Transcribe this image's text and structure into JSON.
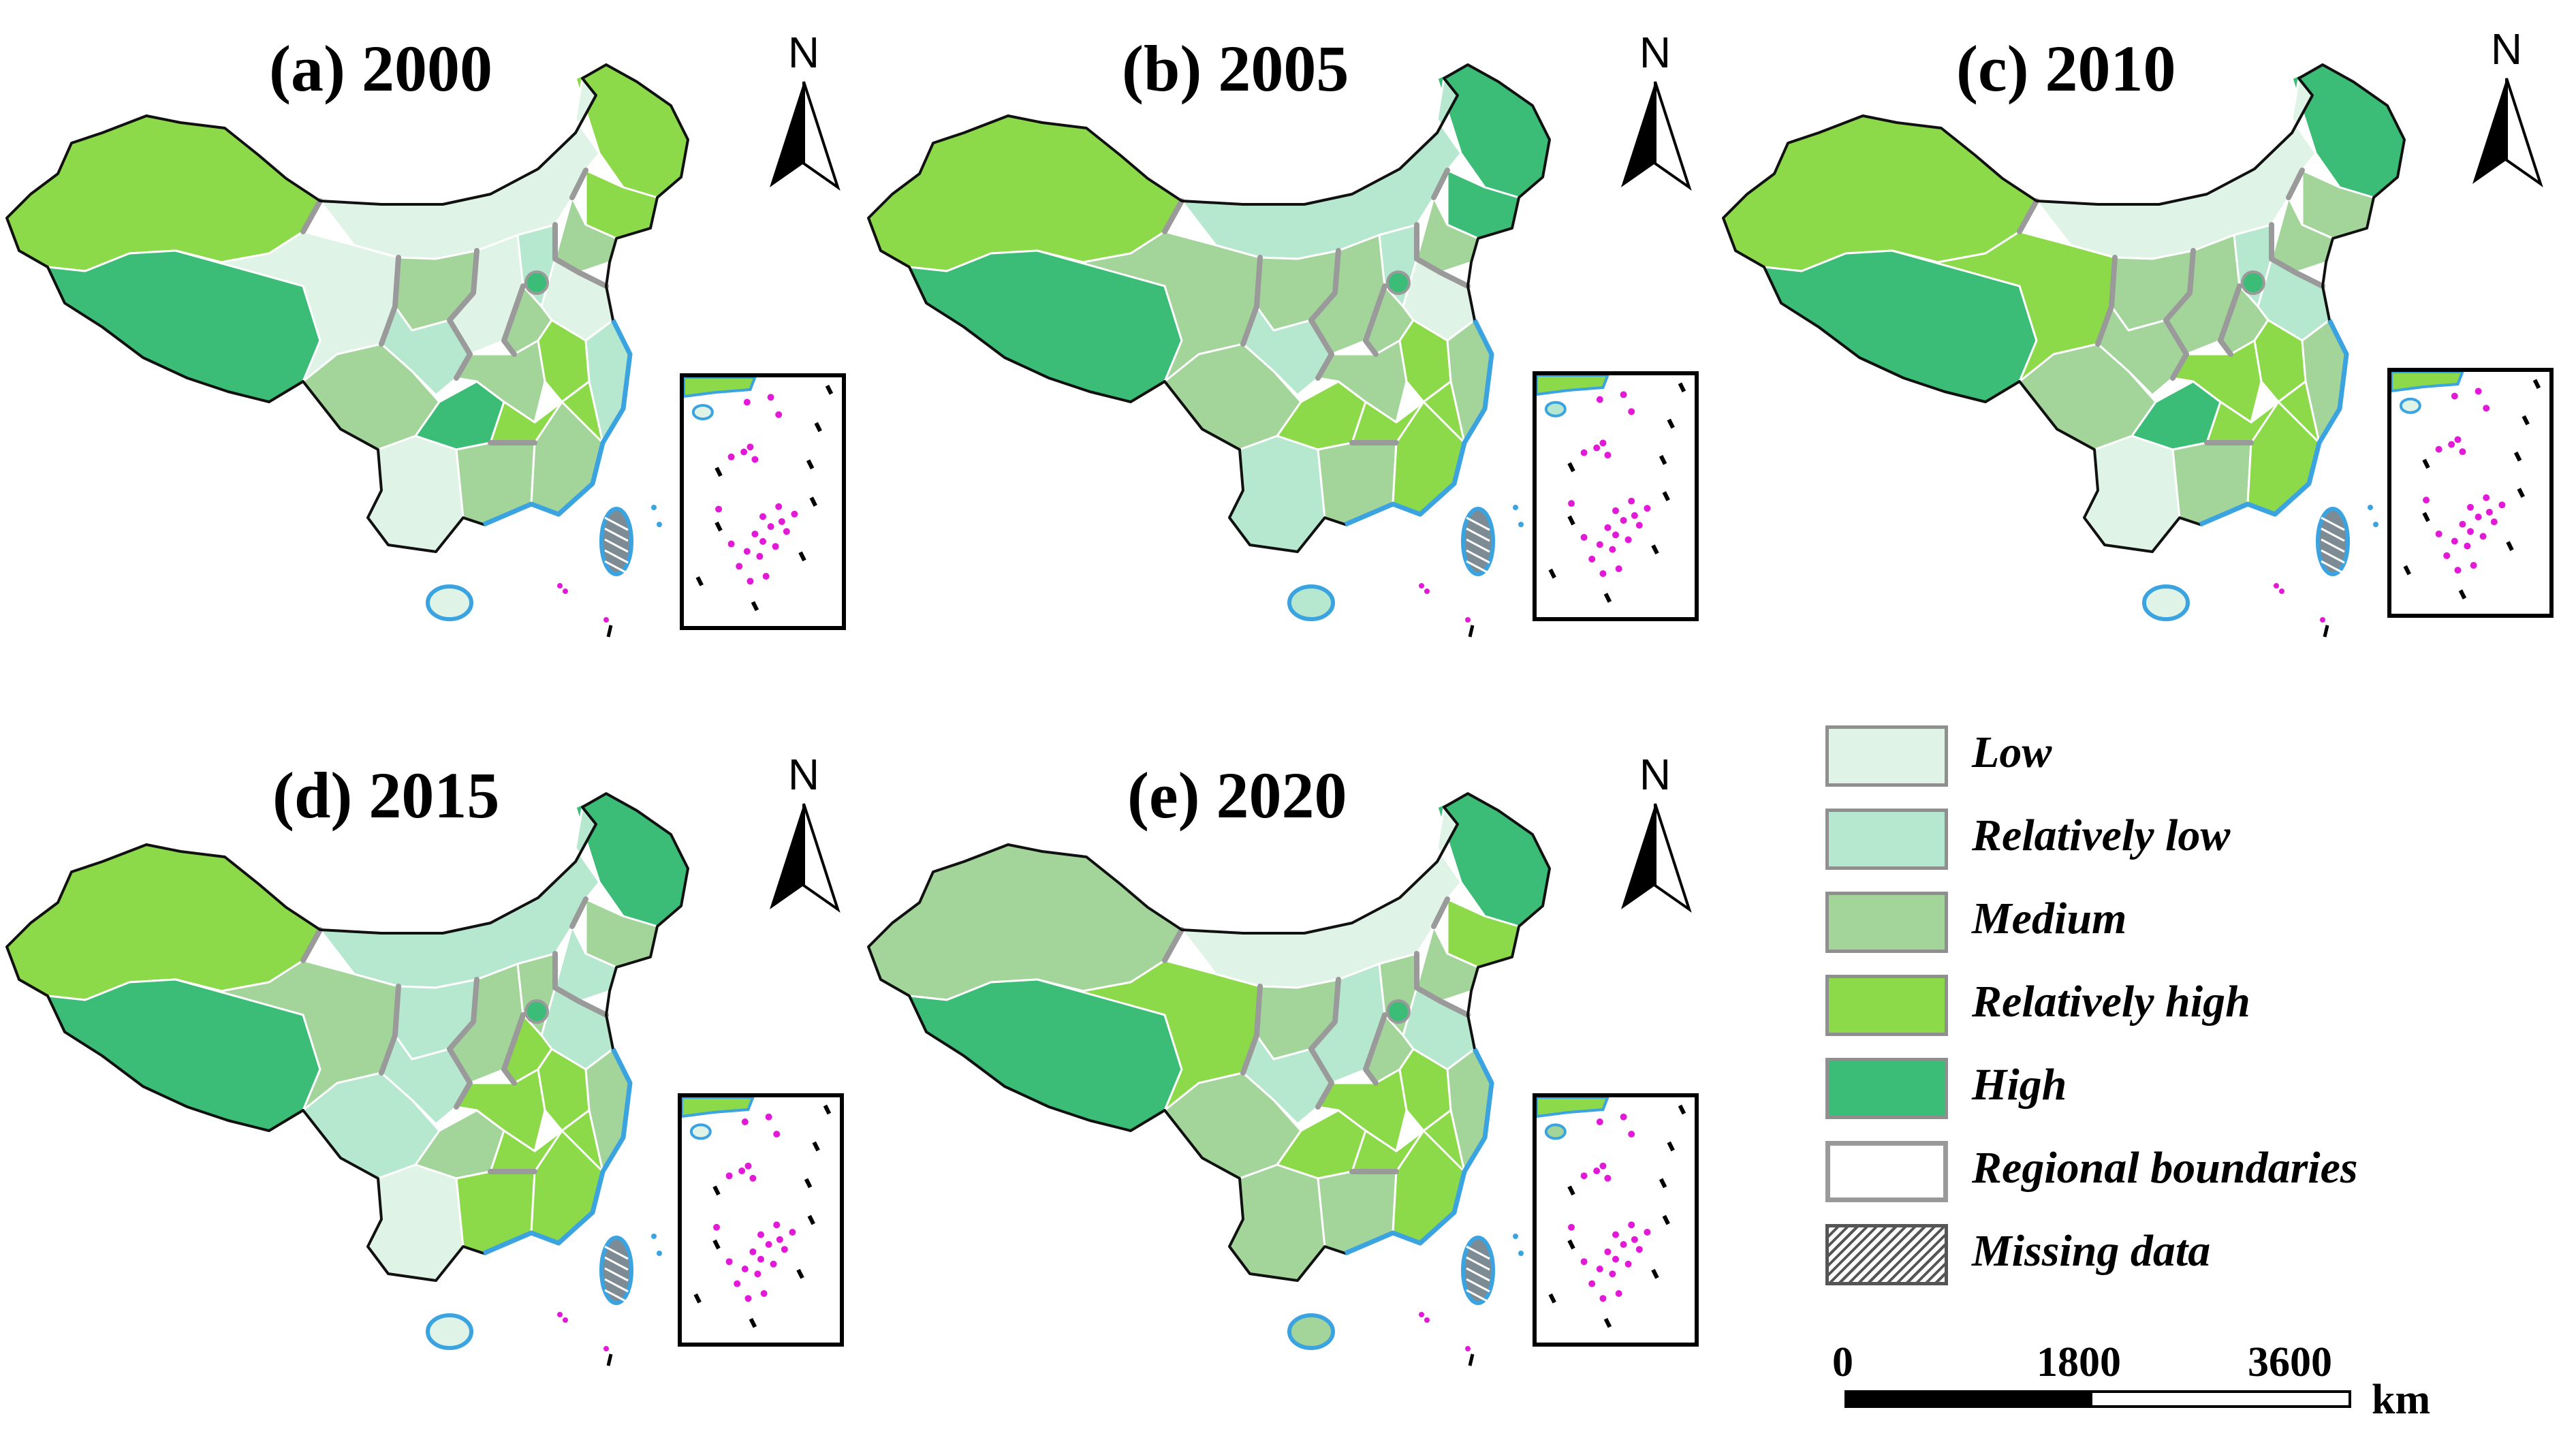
{
  "colors": {
    "low": "#dff3e6",
    "relatively_low": "#b6e8cf",
    "medium": "#a3d59b",
    "relatively_high": "#8cd94a",
    "high": "#3cbd77",
    "regional_boundary": "#9a9a9a",
    "coast": "#3aa3e0",
    "sea_islands": "#e21ad8"
  },
  "panels": [
    {
      "title": "(a) 2000",
      "compass": "N",
      "classes": [
        "relatively_high",
        "high",
        "low",
        "medium",
        "relatively_high",
        "relatively_high",
        "medium",
        "low",
        "medium",
        "relatively_low",
        "low",
        "relatively_low",
        "medium",
        "low",
        "high",
        "medium",
        "relatively_high",
        "relatively_low",
        "low",
        "medium",
        "relatively_high",
        "medium"
      ]
    },
    {
      "title": "(b) 2005",
      "compass": "N",
      "classes": [
        "relatively_high",
        "high",
        "medium",
        "medium",
        "high",
        "high",
        "medium",
        "relatively_low",
        "medium",
        "relatively_low",
        "medium",
        "relatively_low",
        "medium",
        "low",
        "relatively_high",
        "medium",
        "relatively_high",
        "medium",
        "relatively_low",
        "medium",
        "relatively_high",
        "relatively_high"
      ]
    },
    {
      "title": "(c) 2010",
      "compass": "N",
      "classes": [
        "relatively_high",
        "high",
        "relatively_high",
        "medium",
        "high",
        "medium",
        "medium",
        "low",
        "medium",
        "medium",
        "medium",
        "relatively_low",
        "medium",
        "relatively_low",
        "high",
        "relatively_high",
        "relatively_high",
        "medium",
        "low",
        "medium",
        "relatively_high",
        "relatively_high"
      ]
    },
    {
      "title": "(d) 2015",
      "compass": "N",
      "classes": [
        "relatively_high",
        "high",
        "medium",
        "relatively_low",
        "high",
        "medium",
        "relatively_low",
        "relatively_low",
        "relatively_low",
        "relatively_low",
        "medium",
        "medium",
        "relatively_high",
        "relatively_low",
        "medium",
        "relatively_high",
        "relatively_high",
        "medium",
        "low",
        "relatively_high",
        "relatively_high",
        "relatively_high"
      ]
    },
    {
      "title": "(e) 2020",
      "compass": "N",
      "classes": [
        "medium",
        "high",
        "relatively_high",
        "medium",
        "high",
        "relatively_high",
        "medium",
        "low",
        "medium",
        "relatively_low",
        "relatively_low",
        "medium",
        "medium",
        "relatively_low",
        "relatively_high",
        "relatively_high",
        "relatively_high",
        "medium",
        "medium",
        "medium",
        "relatively_high",
        "relatively_high"
      ]
    }
  ],
  "legend": [
    {
      "label": "Low",
      "class": "low"
    },
    {
      "label": "Relatively low",
      "class": "relatively_low"
    },
    {
      "label": "Medium",
      "class": "medium"
    },
    {
      "label": "Relatively high",
      "class": "relatively_high"
    },
    {
      "label": "High",
      "class": "high"
    },
    {
      "label": "Regional boundaries",
      "class": "boundary"
    },
    {
      "label": "Missing data",
      "class": "missing"
    }
  ],
  "scale": {
    "ticks": [
      "0",
      "1800",
      "3600"
    ],
    "unit": "km"
  }
}
